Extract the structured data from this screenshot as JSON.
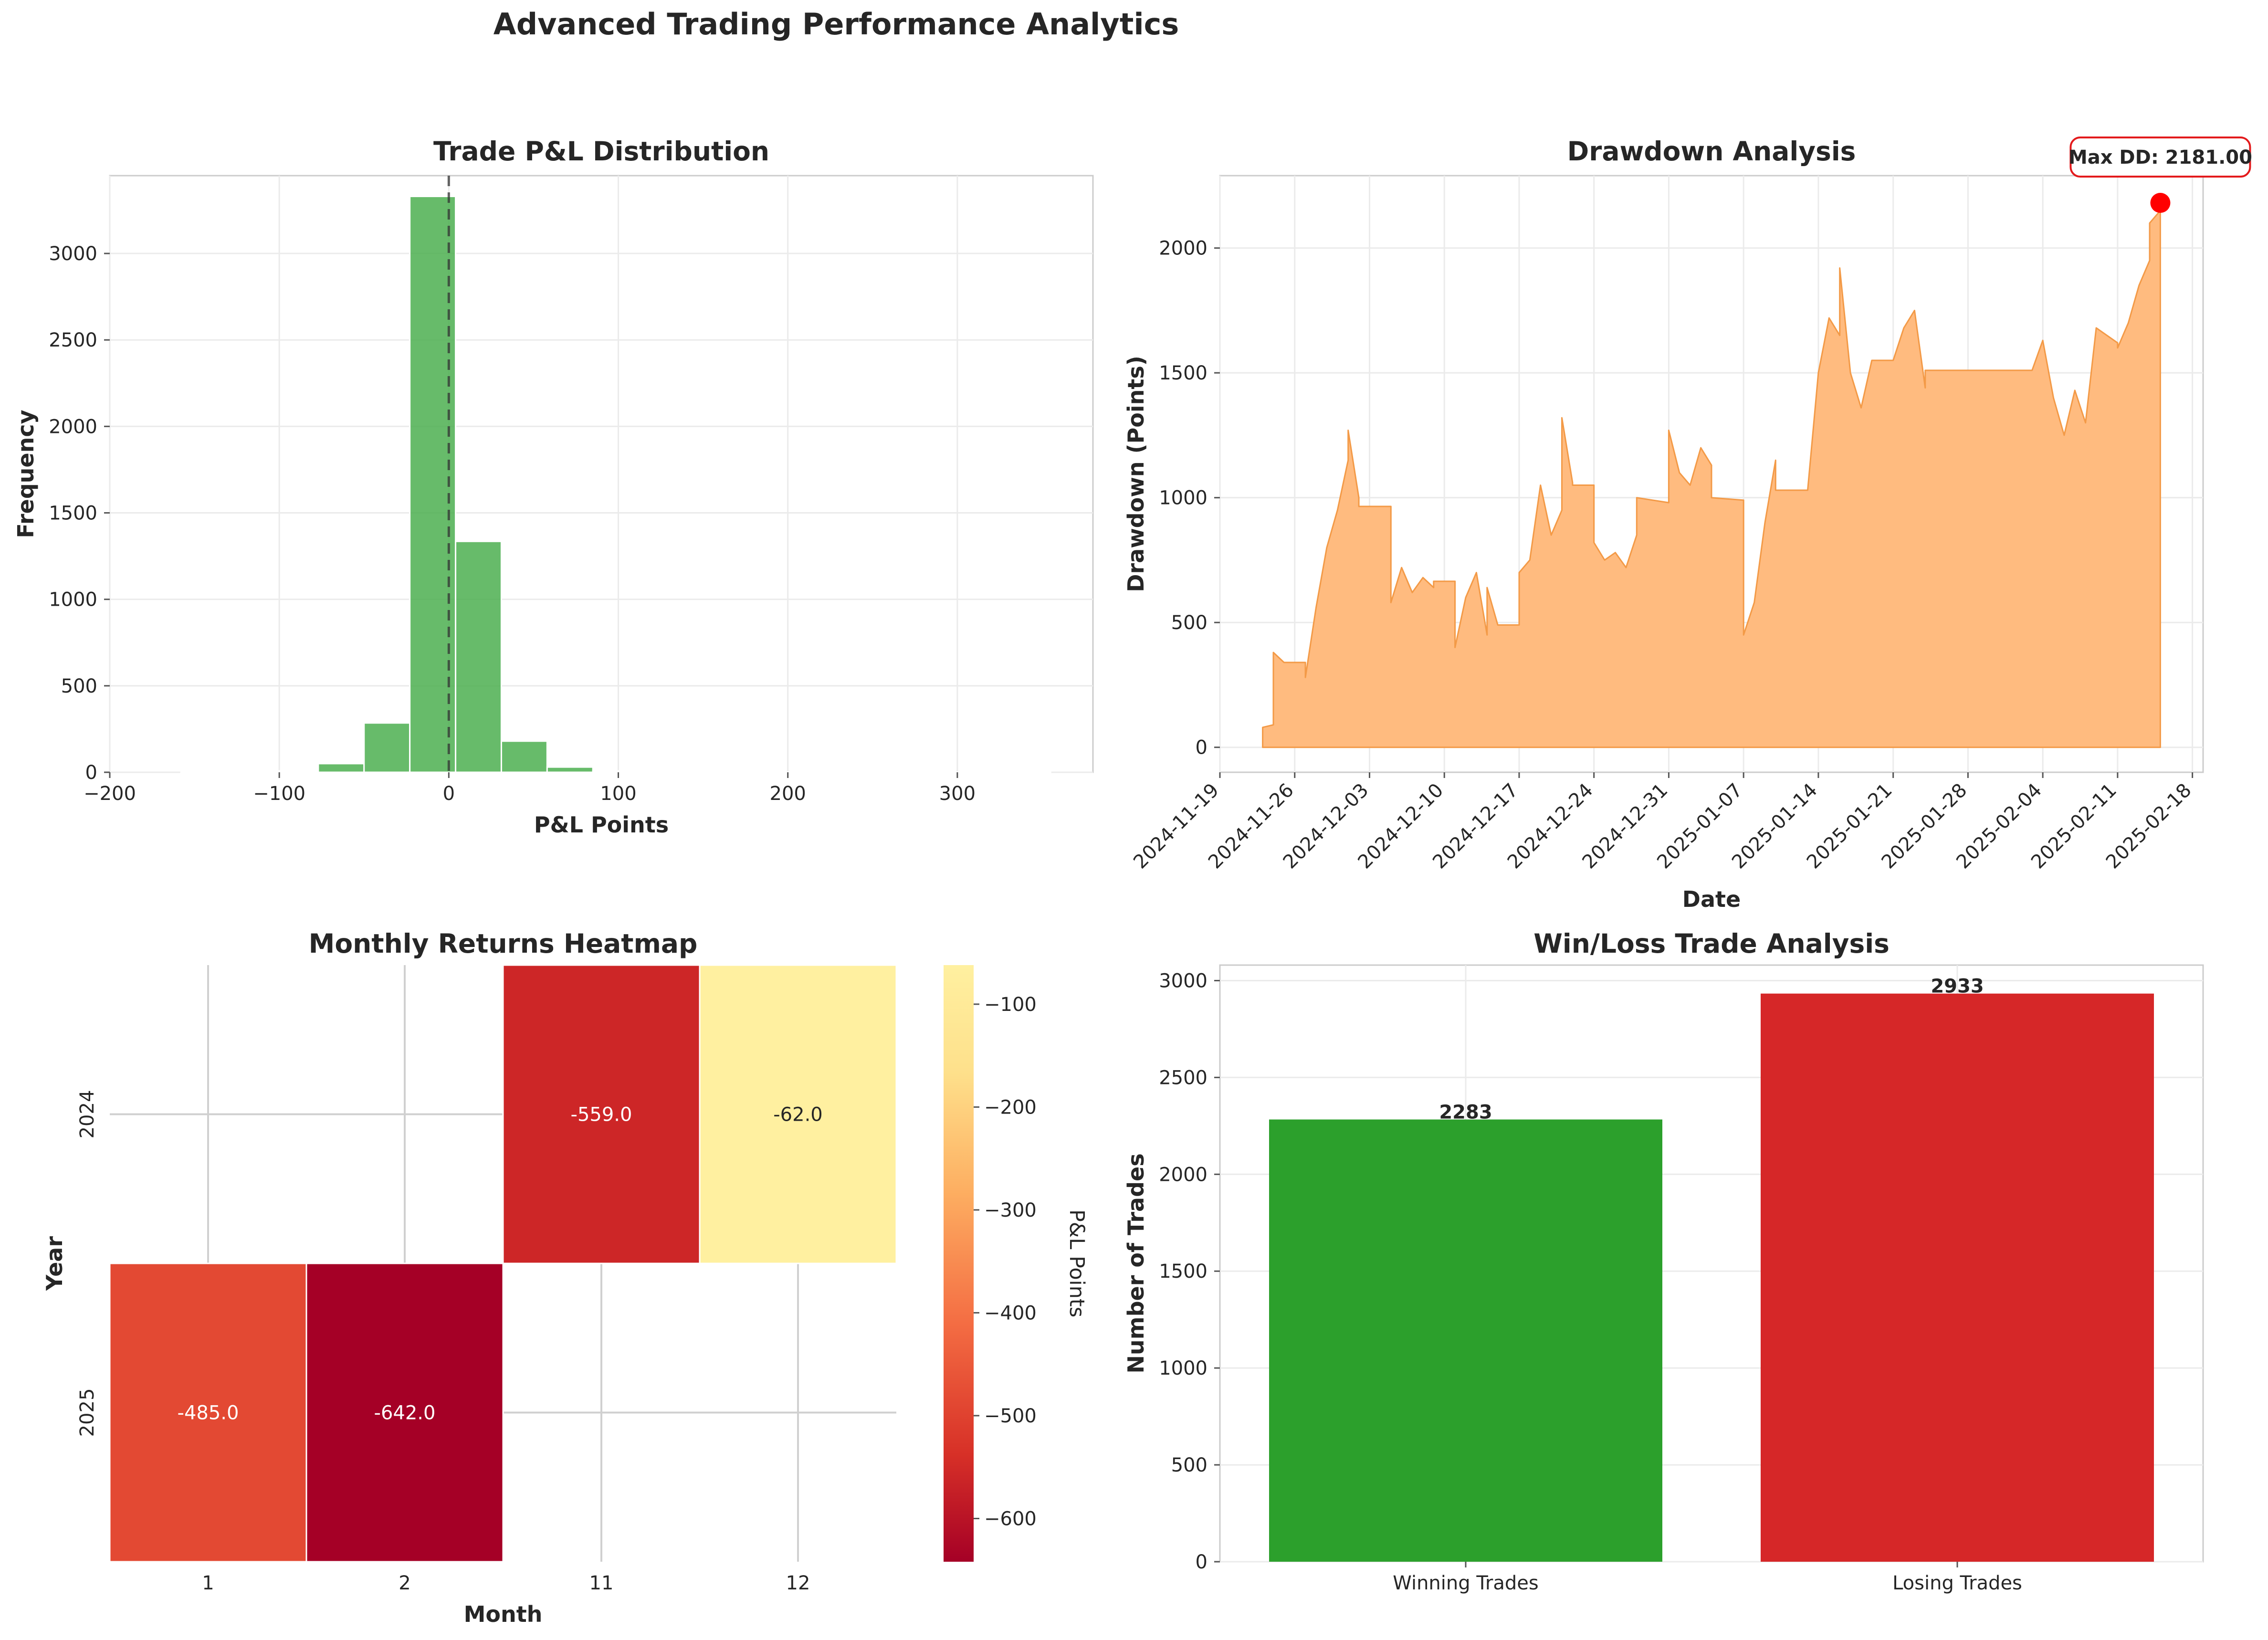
{
  "figure": {
    "title": "Advanced Trading Performance Analytics"
  },
  "chart_data": [
    {
      "id": "pnl_hist",
      "type": "bar",
      "title": "Trade P&L Distribution",
      "xlabel": "P&L Points",
      "ylabel": "Frequency",
      "xlim": [
        -200,
        380
      ],
      "ylim": [
        0,
        3450
      ],
      "xticks": [
        -200,
        -100,
        0,
        100,
        200,
        300
      ],
      "yticks": [
        0,
        500,
        1000,
        1500,
        2000,
        2500,
        3000
      ],
      "grid": true,
      "bin_width": 27,
      "bins": [
        {
          "x0": -158,
          "count": 2
        },
        {
          "x0": -131,
          "count": 3
        },
        {
          "x0": -104,
          "count": 8
        },
        {
          "x0": -77,
          "count": 50
        },
        {
          "x0": -50,
          "count": 285
        },
        {
          "x0": -23,
          "count": 3330
        },
        {
          "x0": 4,
          "count": 1335
        },
        {
          "x0": 31,
          "count": 180
        },
        {
          "x0": 58,
          "count": 30
        },
        {
          "x0": 85,
          "count": 8
        },
        {
          "x0": 112,
          "count": 3
        },
        {
          "x0": 139,
          "count": 2
        },
        {
          "x0": 166,
          "count": 1
        },
        {
          "x0": 193,
          "count": 1
        },
        {
          "x0": 220,
          "count": 1
        },
        {
          "x0": 247,
          "count": 1
        },
        {
          "x0": 274,
          "count": 1
        },
        {
          "x0": 301,
          "count": 1
        },
        {
          "x0": 328,
          "count": 1
        }
      ],
      "reference_line_x": 0,
      "colors": {
        "bar": "#4caf50",
        "ref": "#333333"
      }
    },
    {
      "id": "drawdown",
      "type": "area",
      "title": "Drawdown Analysis",
      "xlabel": "Date",
      "ylabel": "Drawdown (Points)",
      "xlim": [
        "2024-11-19",
        "2025-02-19"
      ],
      "ylim": [
        -100,
        2290
      ],
      "xticks": [
        "2024-11-19",
        "2024-11-26",
        "2024-12-03",
        "2024-12-10",
        "2024-12-17",
        "2024-12-24",
        "2024-12-31",
        "2025-01-07",
        "2025-01-14",
        "2025-01-21",
        "2025-01-28",
        "2025-02-04",
        "2025-02-11",
        "2025-02-18"
      ],
      "yticks": [
        0,
        500,
        1000,
        1500,
        2000
      ],
      "grid": true,
      "series": [
        {
          "points": [
            [
              "2024-11-23",
              0
            ],
            [
              "2024-11-23",
              80
            ],
            [
              "2024-11-24",
              90
            ],
            [
              "2024-11-24",
              380
            ],
            [
              "2024-11-25",
              340
            ],
            [
              "2024-11-27",
              340
            ],
            [
              "2024-11-27",
              280
            ],
            [
              "2024-11-28",
              560
            ],
            [
              "2024-11-29",
              800
            ],
            [
              "2024-11-30",
              950
            ],
            [
              "2024-12-01",
              1150
            ],
            [
              "2024-12-01",
              1270
            ],
            [
              "2024-12-02",
              1000
            ],
            [
              "2024-12-02",
              965
            ],
            [
              "2024-12-05",
              965
            ],
            [
              "2024-12-05",
              580
            ],
            [
              "2024-12-06",
              720
            ],
            [
              "2024-12-07",
              620
            ],
            [
              "2024-12-08",
              680
            ],
            [
              "2024-12-09",
              640
            ],
            [
              "2024-12-09",
              665
            ],
            [
              "2024-12-11",
              665
            ],
            [
              "2024-12-11",
              400
            ],
            [
              "2024-12-12",
              600
            ],
            [
              "2024-12-13",
              700
            ],
            [
              "2024-12-14",
              450
            ],
            [
              "2024-12-14",
              640
            ],
            [
              "2024-12-15",
              490
            ],
            [
              "2024-12-17",
              490
            ],
            [
              "2024-12-17",
              700
            ],
            [
              "2024-12-18",
              750
            ],
            [
              "2024-12-19",
              1050
            ],
            [
              "2024-12-20",
              850
            ],
            [
              "2024-12-21",
              950
            ],
            [
              "2024-12-21",
              1320
            ],
            [
              "2024-12-22",
              1060
            ],
            [
              "2024-12-22",
              1050
            ],
            [
              "2024-12-24",
              1050
            ],
            [
              "2024-12-24",
              820
            ],
            [
              "2024-12-25",
              750
            ],
            [
              "2024-12-26",
              780
            ],
            [
              "2024-12-27",
              720
            ],
            [
              "2024-12-28",
              850
            ],
            [
              "2024-12-28",
              1000
            ],
            [
              "2024-12-31",
              980
            ],
            [
              "2024-12-31",
              1270
            ],
            [
              "2025-01-01",
              1100
            ],
            [
              "2025-01-02",
              1050
            ],
            [
              "2025-01-03",
              1200
            ],
            [
              "2025-01-04",
              1130
            ],
            [
              "2025-01-04",
              1000
            ],
            [
              "2025-01-07",
              990
            ],
            [
              "2025-01-07",
              450
            ],
            [
              "2025-01-08",
              580
            ],
            [
              "2025-01-09",
              900
            ],
            [
              "2025-01-10",
              1150
            ],
            [
              "2025-01-10",
              1030
            ],
            [
              "2025-01-13",
              1030
            ],
            [
              "2025-01-14",
              1500
            ],
            [
              "2025-01-15",
              1720
            ],
            [
              "2025-01-16",
              1650
            ],
            [
              "2025-01-16",
              1920
            ],
            [
              "2025-01-17",
              1500
            ],
            [
              "2025-01-18",
              1360
            ],
            [
              "2025-01-19",
              1550
            ],
            [
              "2025-01-21",
              1550
            ],
            [
              "2025-01-22",
              1680
            ],
            [
              "2025-01-23",
              1750
            ],
            [
              "2025-01-24",
              1440
            ],
            [
              "2025-01-24",
              1510
            ],
            [
              "2025-02-03",
              1510
            ],
            [
              "2025-02-04",
              1630
            ],
            [
              "2025-02-05",
              1400
            ],
            [
              "2025-02-06",
              1250
            ],
            [
              "2025-02-07",
              1430
            ],
            [
              "2025-02-08",
              1300
            ],
            [
              "2025-02-09",
              1680
            ],
            [
              "2025-02-11",
              1620
            ],
            [
              "2025-02-11",
              1600
            ],
            [
              "2025-02-12",
              1700
            ],
            [
              "2025-02-13",
              1850
            ],
            [
              "2025-02-14",
              1950
            ],
            [
              "2025-02-14",
              2100
            ],
            [
              "2025-02-15",
              2150
            ],
            [
              "2025-02-15",
              2181
            ],
            [
              "2025-02-15",
              0
            ]
          ]
        }
      ],
      "annotation": {
        "text": "Max DD: 2181.00",
        "x": "2025-02-15",
        "y": 2181
      },
      "colors": {
        "fill": "#ffbb7f",
        "line": "#f39a47",
        "marker": "#ff0000",
        "box_edge": "#e31a1c"
      }
    },
    {
      "id": "monthly_heatmap",
      "type": "heatmap",
      "title": "Monthly Returns Heatmap",
      "xlabel": "Month",
      "ylabel": "Year",
      "x_categories": [
        "1",
        "2",
        "11",
        "12"
      ],
      "y_categories": [
        "2024",
        "2025"
      ],
      "cells": [
        {
          "x": "11",
          "y": "2024",
          "value": -559.0,
          "label": "-559.0"
        },
        {
          "x": "12",
          "y": "2024",
          "value": -62.0,
          "label": "-62.0"
        },
        {
          "x": "1",
          "y": "2025",
          "value": -485.0,
          "label": "-485.0"
        },
        {
          "x": "2",
          "y": "2025",
          "value": -642.0,
          "label": "-642.0"
        }
      ],
      "colorbar": {
        "label": "P&L Points",
        "range": [
          -642,
          -62
        ],
        "ticks": [
          -100,
          -200,
          -300,
          -400,
          -500,
          -600
        ],
        "tick_labels": [
          "−100",
          "−200",
          "−300",
          "−400",
          "−500",
          "−600"
        ],
        "colormap": "RdYlGn (low end)"
      },
      "colors": {
        "stops": [
          "#a50026",
          "#d73027",
          "#f46d43",
          "#fdae61",
          "#fee08b",
          "#fff0a0"
        ]
      }
    },
    {
      "id": "winloss",
      "type": "bar",
      "title": "Win/Loss Trade Analysis",
      "xlabel": "",
      "ylabel": "Number of Trades",
      "categories": [
        "Winning Trades",
        "Losing Trades"
      ],
      "values": [
        2283,
        2933
      ],
      "value_labels": [
        "2283",
        "2933"
      ],
      "ylim": [
        0,
        3080
      ],
      "yticks": [
        0,
        500,
        1000,
        1500,
        2000,
        2500,
        3000
      ],
      "grid": true,
      "colors": {
        "bars": [
          "#2ca02c",
          "#d62728"
        ]
      }
    }
  ]
}
